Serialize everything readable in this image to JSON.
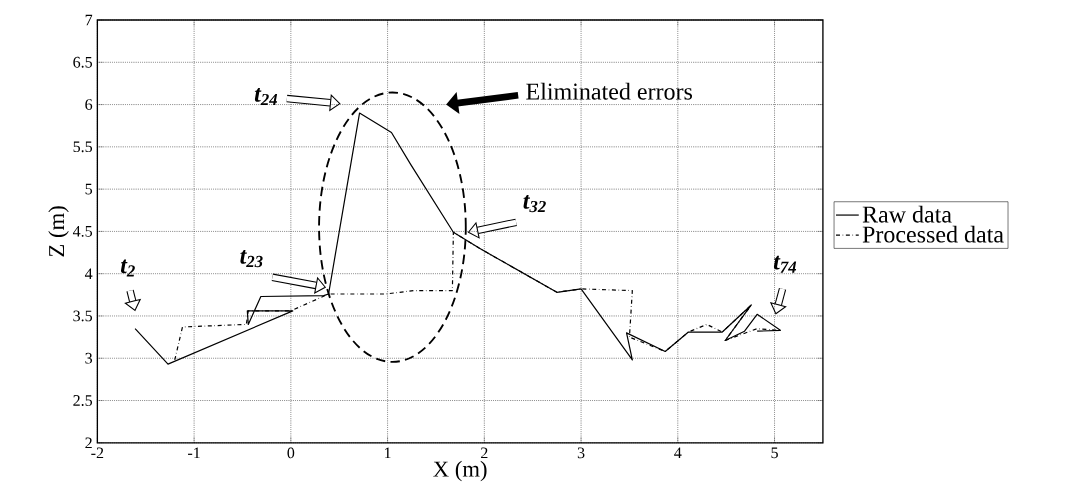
{
  "chart_data": {
    "type": "line",
    "xlabel": "X (m)",
    "ylabel": "Z (m)",
    "xlim": [
      -2,
      5.5
    ],
    "ylim": [
      2,
      7
    ],
    "xticks": [
      -2,
      -1,
      0,
      1,
      2,
      3,
      4,
      5
    ],
    "yticks": [
      2,
      2.5,
      3,
      3.5,
      4,
      4.5,
      5,
      5.5,
      6,
      6.5,
      7
    ],
    "grid": true,
    "legend": "right",
    "marker": "none",
    "series": [
      {
        "name": "Raw data",
        "color": "#000000",
        "line_style": "solid",
        "x": [
          -1.61,
          -1.27,
          0.02,
          -0.45,
          -0.44,
          -0.31,
          0.34,
          0.39,
          0.71,
          1.04,
          1.24,
          1.68,
          1.95,
          2.75,
          3.0,
          3.53,
          3.47,
          3.87,
          4.11,
          4.46,
          4.76,
          4.49,
          4.69,
          4.82,
          5.06,
          4.82
        ],
        "values": [
          3.35,
          2.93,
          3.56,
          3.56,
          3.4,
          3.73,
          3.74,
          3.76,
          5.9,
          5.67,
          5.29,
          4.49,
          4.3,
          3.78,
          3.82,
          2.98,
          3.3,
          3.08,
          3.31,
          3.31,
          3.63,
          3.21,
          3.32,
          3.52,
          3.33,
          3.32
        ]
      },
      {
        "name": "Processed data",
        "color": "#000000",
        "line_style": "dashdot",
        "x": [
          -1.2,
          -1.12,
          -0.46,
          -0.44,
          0.0,
          0.39,
          0.98,
          1.27,
          1.67,
          1.68,
          1.95,
          2.75,
          3.0,
          3.53,
          3.5,
          3.87,
          4.11,
          4.3,
          4.46,
          4.76,
          4.49,
          4.82,
          5.06
        ],
        "values": [
          2.98,
          3.37,
          3.4,
          3.56,
          3.56,
          3.76,
          3.76,
          3.8,
          3.8,
          4.49,
          4.3,
          3.78,
          3.82,
          3.8,
          3.25,
          3.08,
          3.31,
          3.4,
          3.31,
          3.63,
          3.21,
          3.35,
          3.33
        ]
      }
    ],
    "annotations": [
      "t$_{2}$",
      "t$_{23}$",
      "t$_{24}$",
      "t$_{32}$",
      "t$_{74}$",
      "Eliminated errors"
    ]
  }
}
